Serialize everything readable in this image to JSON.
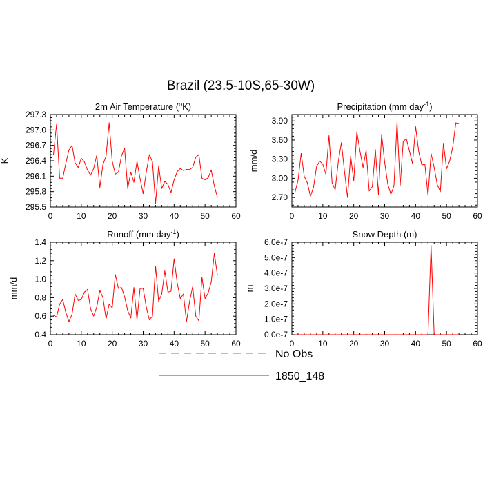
{
  "figure": {
    "title": "Brazil (23.5-10S,65-30W)"
  },
  "legend": {
    "entries": [
      {
        "label": "No Obs",
        "color": "#6666ff",
        "style": "dashed"
      },
      {
        "label": "1850_148",
        "color": "#ff0000",
        "style": "solid"
      }
    ]
  },
  "chart_data": [
    {
      "type": "line",
      "title": "2m Air Temperature (°K)",
      "title_parts": {
        "pre": "2m Air Temperature (",
        "sup": "o",
        "post": "K)"
      },
      "xlabel": "",
      "ylabel": "K",
      "xlim": [
        0,
        60
      ],
      "ylim": [
        295.5,
        297.3
      ],
      "xticks": [
        0,
        10,
        20,
        30,
        40,
        50,
        60
      ],
      "xtick_labels": [
        "0",
        "10",
        "20",
        "30",
        "40",
        "50",
        "60"
      ],
      "yticks": [
        295.5,
        295.8,
        296.1,
        296.4,
        296.7,
        297.0,
        297.3
      ],
      "ytick_labels": [
        "295.5",
        "295.8",
        "296.1",
        "296.4",
        "296.7",
        "297.0",
        "297.3"
      ],
      "series": [
        {
          "name": "1850_148",
          "color": "#ff0000",
          "x": [
            1,
            2,
            3,
            4,
            5,
            6,
            7,
            8,
            9,
            10,
            11,
            12,
            13,
            14,
            15,
            16,
            17,
            18,
            19,
            20,
            21,
            22,
            23,
            24,
            25,
            26,
            27,
            28,
            29,
            30,
            31,
            32,
            33,
            34,
            35,
            36,
            37,
            38,
            39,
            40,
            41,
            42,
            43,
            44,
            45,
            46,
            47,
            48,
            49,
            50,
            51,
            52,
            53,
            54
          ],
          "values": [
            296.52,
            297.11,
            296.06,
            296.06,
            296.35,
            296.61,
            296.7,
            296.36,
            296.27,
            296.45,
            296.38,
            296.22,
            296.12,
            296.25,
            296.51,
            295.88,
            296.33,
            296.49,
            297.14,
            296.39,
            296.14,
            296.18,
            296.5,
            296.64,
            295.86,
            296.18,
            295.98,
            296.39,
            296.05,
            295.76,
            296.18,
            296.52,
            296.38,
            295.57,
            296.3,
            295.86,
            296.0,
            295.94,
            295.78,
            296.03,
            296.19,
            296.25,
            296.21,
            296.23,
            296.23,
            296.27,
            296.47,
            296.52,
            296.06,
            296.03,
            296.07,
            296.22,
            295.91,
            295.69
          ]
        }
      ]
    },
    {
      "type": "line",
      "title": "Precipitation (mm day-1)",
      "title_parts": {
        "pre": "Precipitation (mm day",
        "sup": "-1",
        "post": ")"
      },
      "xlabel": "",
      "ylabel": "mm/d",
      "xlim": [
        0,
        60
      ],
      "ylim": [
        2.55,
        4.0
      ],
      "xticks": [
        0,
        10,
        20,
        30,
        40,
        50,
        60
      ],
      "xtick_labels": [
        "0",
        "10",
        "20",
        "30",
        "40",
        "50",
        "60"
      ],
      "yticks": [
        2.7,
        3.0,
        3.3,
        3.6,
        3.9
      ],
      "ytick_labels": [
        "2.70",
        "3.00",
        "3.30",
        "3.60",
        "3.90"
      ],
      "series": [
        {
          "name": "1850_148",
          "color": "#ff0000",
          "x": [
            1,
            2,
            3,
            4,
            5,
            6,
            7,
            8,
            9,
            10,
            11,
            12,
            13,
            14,
            15,
            16,
            17,
            18,
            19,
            20,
            21,
            22,
            23,
            24,
            25,
            26,
            27,
            28,
            29,
            30,
            31,
            32,
            33,
            34,
            35,
            36,
            37,
            38,
            39,
            40,
            41,
            42,
            43,
            44,
            45,
            46,
            47,
            48,
            49,
            50,
            51,
            52,
            53,
            54
          ],
          "values": [
            2.78,
            2.97,
            3.39,
            3.03,
            2.93,
            2.72,
            2.86,
            3.19,
            3.27,
            3.22,
            3.06,
            3.67,
            2.93,
            2.82,
            3.26,
            3.56,
            3.11,
            2.7,
            3.35,
            2.96,
            3.73,
            3.43,
            3.17,
            3.44,
            2.8,
            2.87,
            3.45,
            2.74,
            3.69,
            3.25,
            2.91,
            2.75,
            2.88,
            3.89,
            2.88,
            3.58,
            3.62,
            3.43,
            3.23,
            3.81,
            3.42,
            3.21,
            3.22,
            2.73,
            3.39,
            3.17,
            2.9,
            2.79,
            3.55,
            3.15,
            3.27,
            3.49,
            3.87,
            3.86
          ]
        }
      ]
    },
    {
      "type": "line",
      "title": "Runoff (mm day-1)",
      "title_parts": {
        "pre": "Runoff (mm day",
        "sup": "-1",
        "post": ")"
      },
      "xlabel": "",
      "ylabel": "mm/d",
      "xlim": [
        0,
        60
      ],
      "ylim": [
        0.4,
        1.4
      ],
      "xticks": [
        0,
        10,
        20,
        30,
        40,
        50,
        60
      ],
      "xtick_labels": [
        "0",
        "10",
        "20",
        "30",
        "40",
        "50",
        "60"
      ],
      "yticks": [
        0.4,
        0.6,
        0.8,
        1.0,
        1.2,
        1.4
      ],
      "ytick_labels": [
        "0.4",
        "0.6",
        "0.8",
        "1.0",
        "1.2",
        "1.4"
      ],
      "series": [
        {
          "name": "1850_148",
          "color": "#ff0000",
          "x": [
            1,
            2,
            3,
            4,
            5,
            6,
            7,
            8,
            9,
            10,
            11,
            12,
            13,
            14,
            15,
            16,
            17,
            18,
            19,
            20,
            21,
            22,
            23,
            24,
            25,
            26,
            27,
            28,
            29,
            30,
            31,
            32,
            33,
            34,
            35,
            36,
            37,
            38,
            39,
            40,
            41,
            42,
            43,
            44,
            45,
            46,
            47,
            48,
            49,
            50,
            51,
            52,
            53,
            54
          ],
          "values": [
            0.61,
            0.59,
            0.73,
            0.78,
            0.64,
            0.54,
            0.62,
            0.84,
            0.77,
            0.78,
            0.86,
            0.89,
            0.68,
            0.6,
            0.7,
            0.88,
            0.8,
            0.57,
            0.73,
            0.69,
            1.05,
            0.9,
            0.91,
            0.81,
            0.66,
            0.58,
            0.91,
            0.56,
            0.9,
            0.9,
            0.7,
            0.56,
            0.6,
            1.14,
            0.76,
            0.84,
            1.09,
            0.86,
            0.87,
            1.22,
            0.96,
            0.79,
            0.84,
            0.54,
            0.76,
            0.92,
            0.6,
            0.55,
            1.02,
            0.79,
            0.85,
            0.97,
            1.28,
            1.04
          ]
        }
      ]
    },
    {
      "type": "line",
      "title": "Snow Depth (m)",
      "xlabel": "",
      "ylabel": "m",
      "xlim": [
        0,
        60
      ],
      "ylim": [
        0.0,
        6e-07
      ],
      "xticks": [
        0,
        10,
        20,
        30,
        40,
        50,
        60
      ],
      "xtick_labels": [
        "0",
        "10",
        "20",
        "30",
        "40",
        "50",
        "60"
      ],
      "yticks": [
        0.0,
        1e-07,
        2e-07,
        3e-07,
        4e-07,
        5e-07,
        6e-07
      ],
      "ytick_labels": [
        "0.0e-7",
        "1.0e-7",
        "2.0e-7",
        "3.0e-7",
        "4.0e-7",
        "5.0e-7",
        "6.0e-7"
      ],
      "series": [
        {
          "name": "1850_148",
          "color": "#ff0000",
          "x": [
            1,
            2,
            3,
            4,
            5,
            6,
            7,
            8,
            9,
            10,
            11,
            12,
            13,
            14,
            15,
            16,
            17,
            18,
            19,
            20,
            21,
            22,
            23,
            24,
            25,
            26,
            27,
            28,
            29,
            30,
            31,
            32,
            33,
            34,
            35,
            36,
            37,
            38,
            39,
            40,
            41,
            42,
            43,
            44,
            45,
            46,
            47,
            48,
            49,
            50,
            51,
            52,
            53,
            54
          ],
          "values": [
            0,
            0,
            0,
            0,
            0,
            0,
            0,
            0,
            0,
            0,
            0,
            0,
            0,
            0,
            0,
            0,
            0,
            0,
            0,
            0,
            0,
            0,
            0,
            6e-10,
            0,
            0,
            0,
            2e-10,
            0,
            0,
            0,
            0,
            0,
            0,
            0,
            0,
            0,
            0,
            0,
            0,
            0,
            0,
            0,
            0,
            5.8e-07,
            0,
            0,
            0,
            0,
            0,
            0,
            0,
            0,
            0
          ]
        }
      ]
    }
  ]
}
